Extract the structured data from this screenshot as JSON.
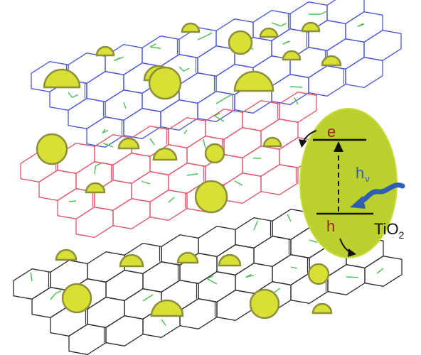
{
  "colors": {
    "top_sheet": "#4a56d6",
    "middle_sheet": "#e0566a",
    "bottom_sheet": "#2e2e2e",
    "bond_green": "#45c04d",
    "particle_fill": "#d8e035",
    "particle_stroke": "#8c8f3a",
    "tio2_fill": "#b9d02e",
    "electron_label": "#a12222",
    "hole_label": "#a12222",
    "light_arrow": "#2f5fb4",
    "text": "#111111"
  },
  "icons": {
    "light_arrow": "wavy-arrow-icon",
    "electron_transfer_arrow": "curved-arrow-icon",
    "hole_transfer_arrow": "curved-arrow-icon",
    "excitation_arrow": "dashed-arrow-icon"
  },
  "labels": {
    "electron": "e",
    "hole": "h",
    "light": "h",
    "light_suffix": "ν",
    "tio2_main": "TiO",
    "tio2_sub": "2"
  }
}
